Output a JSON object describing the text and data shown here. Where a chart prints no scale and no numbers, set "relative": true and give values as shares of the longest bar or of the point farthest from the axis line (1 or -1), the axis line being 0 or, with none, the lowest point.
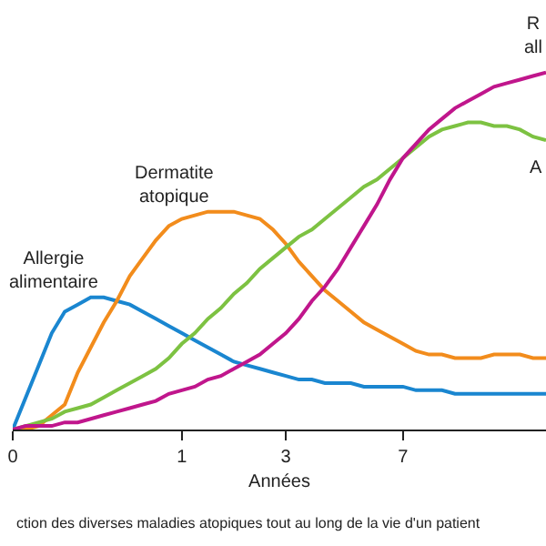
{
  "chart_data": {
    "type": "line",
    "relative": true,
    "xlabel": "Années",
    "grid": false,
    "legend": false,
    "marker": "none",
    "line_style": "solid",
    "categories": [
      "0",
      null,
      null,
      null,
      null,
      null,
      null,
      null,
      null,
      null,
      null,
      null,
      null,
      "1",
      null,
      null,
      null,
      null,
      null,
      null,
      null,
      "3",
      null,
      null,
      null,
      null,
      null,
      null,
      null,
      null,
      "7",
      null,
      null,
      null,
      null,
      null,
      null,
      null,
      null,
      null,
      null,
      null
    ],
    "series": [
      {
        "name": "Allergie\nalimentaire",
        "color": "#1a86d0",
        "values": [
          0,
          0.09,
          0.18,
          0.27,
          0.33,
          0.35,
          0.37,
          0.37,
          0.36,
          0.35,
          0.33,
          0.31,
          0.29,
          0.27,
          0.25,
          0.23,
          0.21,
          0.19,
          0.18,
          0.17,
          0.16,
          0.15,
          0.14,
          0.14,
          0.13,
          0.13,
          0.13,
          0.12,
          0.12,
          0.12,
          0.12,
          0.11,
          0.11,
          0.11,
          0.1,
          0.1,
          0.1,
          0.1,
          0.1,
          0.1,
          0.1,
          0.1
        ]
      },
      {
        "name": "Dermatite\natopique",
        "color": "#f28c1c",
        "values": [
          0,
          0,
          0.01,
          0.04,
          0.07,
          0.16,
          0.23,
          0.3,
          0.36,
          0.43,
          0.48,
          0.53,
          0.57,
          0.59,
          0.6,
          0.61,
          0.61,
          0.61,
          0.6,
          0.59,
          0.56,
          0.52,
          0.47,
          0.43,
          0.39,
          0.36,
          0.33,
          0.3,
          0.28,
          0.26,
          0.24,
          0.22,
          0.21,
          0.21,
          0.2,
          0.2,
          0.2,
          0.21,
          0.21,
          0.21,
          0.2,
          0.2
        ]
      },
      {
        "name": "A",
        "color": "#7dc242",
        "values": [
          0,
          0.01,
          0.02,
          0.03,
          0.05,
          0.06,
          0.07,
          0.09,
          0.11,
          0.13,
          0.15,
          0.17,
          0.2,
          0.24,
          0.27,
          0.31,
          0.34,
          0.38,
          0.41,
          0.45,
          0.48,
          0.51,
          0.54,
          0.56,
          0.59,
          0.62,
          0.65,
          0.68,
          0.7,
          0.73,
          0.76,
          0.79,
          0.82,
          0.84,
          0.85,
          0.86,
          0.86,
          0.85,
          0.85,
          0.84,
          0.82,
          0.81
        ]
      },
      {
        "name": "R\nall",
        "color": "#c0168c",
        "values": [
          0,
          0.01,
          0.01,
          0.01,
          0.02,
          0.02,
          0.03,
          0.04,
          0.05,
          0.06,
          0.07,
          0.08,
          0.1,
          0.11,
          0.12,
          0.14,
          0.15,
          0.17,
          0.19,
          0.21,
          0.24,
          0.27,
          0.31,
          0.36,
          0.4,
          0.45,
          0.51,
          0.57,
          0.63,
          0.7,
          0.76,
          0.8,
          0.84,
          0.87,
          0.9,
          0.92,
          0.94,
          0.96,
          0.97,
          0.98,
          0.99,
          1
        ]
      }
    ],
    "annotations": [
      "ction des diverses maladies atopiques tout au long de la vie d'un patient"
    ]
  }
}
